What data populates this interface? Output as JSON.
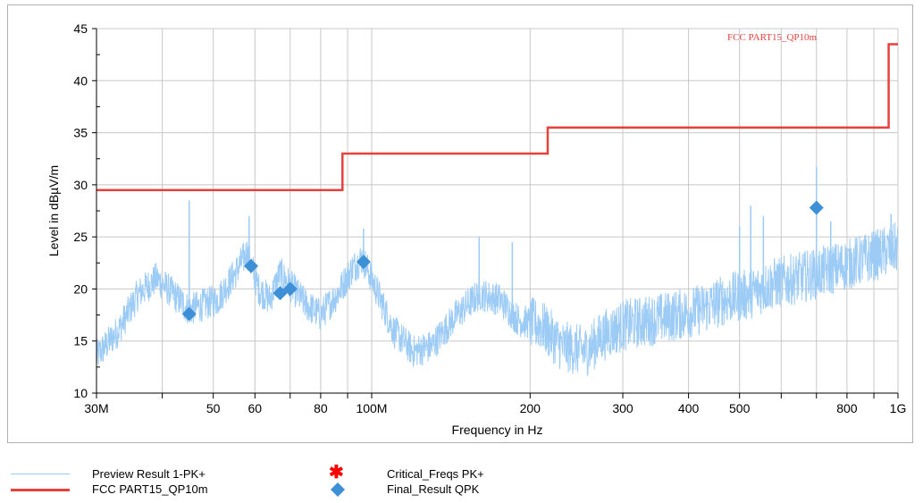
{
  "chart_data": {
    "type": "line",
    "title": "",
    "xlabel": "Frequency in Hz",
    "ylabel": "Level in dBµV/m",
    "xscale": "log",
    "xlim": [
      30000000,
      1000000000
    ],
    "ylim": [
      10,
      45
    ],
    "grid": true,
    "x_ticks": [
      {
        "value": 30000000,
        "label": "30M"
      },
      {
        "value": 50000000,
        "label": "50"
      },
      {
        "value": 60000000,
        "label": "60"
      },
      {
        "value": 80000000,
        "label": "80"
      },
      {
        "value": 100000000,
        "label": "100M"
      },
      {
        "value": 200000000,
        "label": "200"
      },
      {
        "value": 300000000,
        "label": "300"
      },
      {
        "value": 400000000,
        "label": "400"
      },
      {
        "value": 500000000,
        "label": "500"
      },
      {
        "value": 800000000,
        "label": "800"
      },
      {
        "value": 1000000000,
        "label": "1G"
      }
    ],
    "x_minor_ticks": [
      40000000,
      70000000,
      90000000,
      600000000,
      700000000,
      900000000
    ],
    "y_ticks": [
      10,
      15,
      20,
      25,
      30,
      35,
      40,
      45
    ],
    "limit_line": {
      "name": "FCC PART15_QP10m",
      "color": "#e8413c",
      "steps": [
        {
          "from": 30000000,
          "to": 88000000,
          "level": 29.5
        },
        {
          "from": 88000000,
          "to": 216000000,
          "level": 33.0
        },
        {
          "from": 216000000,
          "to": 960000000,
          "level": 35.5
        },
        {
          "from": 960000000,
          "to": 1000000000,
          "level": 43.5
        }
      ],
      "annotation": "FCC PART15_QP10m"
    },
    "preview_series": {
      "name": "Preview Result 1-PK+",
      "color": "#9ccbf5",
      "envelope": [
        [
          30000000,
          13.5
        ],
        [
          33000000,
          16
        ],
        [
          36000000,
          19.5
        ],
        [
          39000000,
          21
        ],
        [
          42000000,
          19.5
        ],
        [
          45000000,
          18
        ],
        [
          48000000,
          18.5
        ],
        [
          51000000,
          19
        ],
        [
          55000000,
          21.5
        ],
        [
          58000000,
          23.5
        ],
        [
          61000000,
          20
        ],
        [
          64000000,
          19
        ],
        [
          67000000,
          21.5
        ],
        [
          71000000,
          20
        ],
        [
          75000000,
          18.5
        ],
        [
          80000000,
          17.5
        ],
        [
          86000000,
          19.5
        ],
        [
          92000000,
          22
        ],
        [
          96000000,
          23
        ],
        [
          100000000,
          21
        ],
        [
          110000000,
          16
        ],
        [
          120000000,
          14
        ],
        [
          130000000,
          14.5
        ],
        [
          145000000,
          17.5
        ],
        [
          160000000,
          19.5
        ],
        [
          175000000,
          19
        ],
        [
          190000000,
          17
        ],
        [
          210000000,
          16.5
        ],
        [
          230000000,
          14.5
        ],
        [
          255000000,
          14
        ],
        [
          275000000,
          15.5
        ],
        [
          300000000,
          16.5
        ],
        [
          340000000,
          17
        ],
        [
          380000000,
          17.5
        ],
        [
          420000000,
          18
        ],
        [
          470000000,
          19
        ],
        [
          520000000,
          19.5
        ],
        [
          580000000,
          20.5
        ],
        [
          640000000,
          21
        ],
        [
          700000000,
          21.5
        ],
        [
          760000000,
          22
        ],
        [
          820000000,
          22.5
        ],
        [
          880000000,
          23
        ],
        [
          940000000,
          23.5
        ],
        [
          1000000000,
          24
        ]
      ],
      "spikes": [
        {
          "x": 45000000,
          "y": 28.5
        },
        {
          "x": 58500000,
          "y": 27
        },
        {
          "x": 96500000,
          "y": 25.8
        },
        {
          "x": 160000000,
          "y": 25
        },
        {
          "x": 185000000,
          "y": 24.5
        },
        {
          "x": 500000000,
          "y": 26
        },
        {
          "x": 525000000,
          "y": 28
        },
        {
          "x": 555000000,
          "y": 27
        },
        {
          "x": 700000000,
          "y": 31.7
        },
        {
          "x": 745000000,
          "y": 26.5
        },
        {
          "x": 970000000,
          "y": 27.2
        }
      ]
    },
    "final_result_qpk": {
      "name": "Final_Result QPK",
      "color": "#3d8fd6",
      "points": [
        {
          "x": 45000000,
          "y": 17.6
        },
        {
          "x": 59000000,
          "y": 22.2
        },
        {
          "x": 67000000,
          "y": 19.6
        },
        {
          "x": 70000000,
          "y": 20.0
        },
        {
          "x": 96500000,
          "y": 22.6
        },
        {
          "x": 700000000,
          "y": 27.8
        }
      ]
    },
    "critical_freqs": {
      "name": "Critical_Freqs PK+",
      "color": "#ff0000",
      "points": []
    },
    "legend": [
      {
        "label": "Preview Result 1-PK+",
        "marker": "line",
        "color": "#9ccbf5"
      },
      {
        "label": "FCC PART15_QP10m",
        "marker": "line",
        "color": "#e8413c"
      },
      {
        "label": "Critical_Freqs PK+",
        "marker": "asterisk",
        "color": "#ff0000"
      },
      {
        "label": "Final_Result QPK",
        "marker": "diamond",
        "color": "#3d8fd6"
      }
    ]
  }
}
